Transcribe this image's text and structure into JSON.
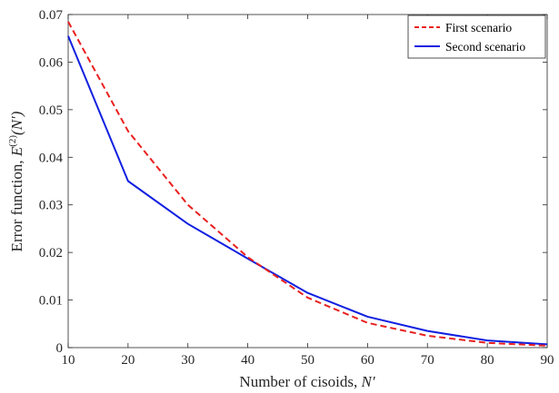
{
  "chart_data": {
    "type": "line",
    "x": [
      10,
      20,
      30,
      40,
      50,
      60,
      70,
      80,
      90
    ],
    "series": [
      {
        "name": "First scenario",
        "color": "#e8201f",
        "dash": "dashed",
        "values": [
          0.0685,
          0.0455,
          0.03,
          0.019,
          0.0105,
          0.0052,
          0.0025,
          0.001,
          0.0004
        ]
      },
      {
        "name": "Second scenario",
        "color": "#1020e0",
        "dash": "solid",
        "values": [
          0.0655,
          0.035,
          0.026,
          0.0187,
          0.0115,
          0.0065,
          0.0035,
          0.0015,
          0.0007
        ]
      }
    ],
    "xlim": [
      10,
      90
    ],
    "ylim": [
      0,
      0.07
    ],
    "xticks": [
      "10",
      "20",
      "30",
      "40",
      "50",
      "60",
      "70",
      "80",
      "90"
    ],
    "yticks": [
      "0",
      "0.01",
      "0.02",
      "0.03",
      "0.04",
      "0.05",
      "0.06",
      "0.07"
    ],
    "xlabel_text": "Number of cisoids, ",
    "xlabel_var": "N′",
    "ylabel_text": "Error function, ",
    "ylabel_var": "E",
    "ylabel_sup": "(2)",
    "ylabel_arg": "(N′)",
    "legend_position": "top-right",
    "grid": false
  }
}
